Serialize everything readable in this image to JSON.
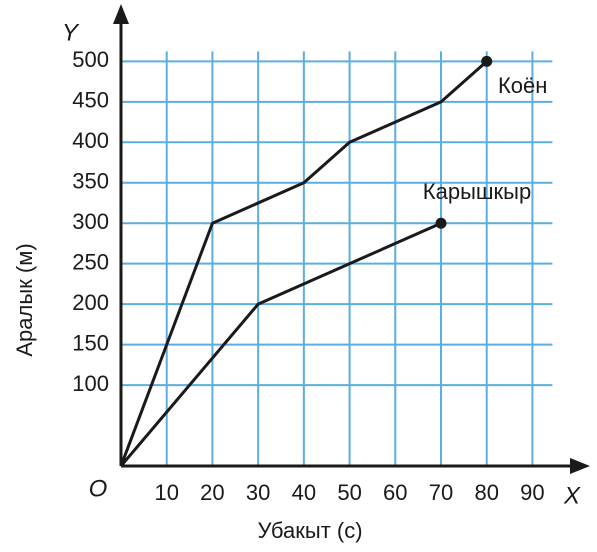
{
  "chart_data": {
    "type": "line",
    "x_axis_label": "Убакыт (с)",
    "y_axis_label": "Аралык (м)",
    "x_symbol": "X",
    "y_symbol": "Y",
    "origin_label": "O",
    "xlim": [
      0,
      98
    ],
    "ylim": [
      0,
      540
    ],
    "xticks": [
      10,
      20,
      30,
      40,
      50,
      60,
      70,
      80,
      90
    ],
    "yticks": [
      100,
      150,
      200,
      250,
      300,
      350,
      400,
      450,
      500
    ],
    "grid": true,
    "grid_color": "#5aaee0",
    "series": [
      {
        "name": "Коён",
        "color": "#1a1a1a",
        "x": [
          0,
          10,
          20,
          40,
          50,
          70,
          80
        ],
        "values": [
          0,
          150,
          300,
          350,
          400,
          450,
          500
        ]
      },
      {
        "name": "Карышкыр",
        "color": "#1a1a1a",
        "x": [
          0,
          30,
          70
        ],
        "values": [
          0,
          200,
          300
        ]
      }
    ]
  }
}
